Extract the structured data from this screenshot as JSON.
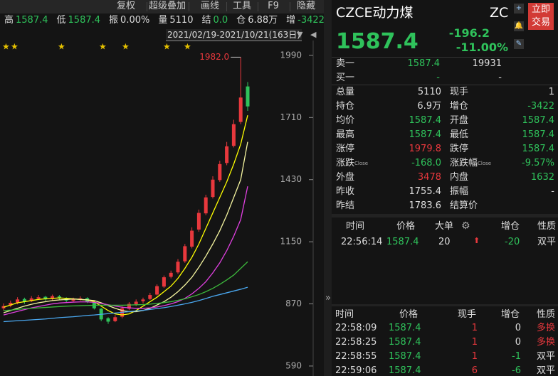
{
  "toolbar": [
    "复权",
    "超级叠加",
    "画线",
    "工具",
    "F9",
    "隐藏"
  ],
  "quote_bar": [
    {
      "label": "高",
      "value": "1587.4",
      "color": "#2fc25b"
    },
    {
      "label": "低",
      "value": "1587.4",
      "color": "#2fc25b"
    },
    {
      "label": "振",
      "value": "0.00%",
      "color": "#dddddd"
    },
    {
      "label": "量",
      "value": "5110",
      "color": "#dddddd"
    },
    {
      "label": "结",
      "value": "0.0",
      "color": "#2fc25b"
    },
    {
      "label": "仓",
      "value": "6.88万",
      "color": "#dddddd"
    },
    {
      "label": "增",
      "value": "-3422",
      "color": "#2fc25b"
    }
  ],
  "date_range": "2021/02/19-2021/10/21(163日)",
  "chart_data": {
    "type": "candlestick",
    "open": [
      850,
      862,
      874,
      892,
      882,
      893,
      902,
      892,
      904,
      896,
      884,
      888,
      896,
      878,
      848,
      805,
      792,
      812,
      848,
      868,
      882,
      892,
      912,
      948,
      992,
      1012,
      1062,
      1128,
      1205,
      1278,
      1352,
      1428,
      1505,
      1582,
      1690,
      1850
    ],
    "close": [
      860,
      875,
      890,
      880,
      895,
      900,
      890,
      905,
      895,
      885,
      890,
      895,
      880,
      850,
      800,
      790,
      810,
      850,
      870,
      880,
      890,
      910,
      950,
      990,
      1010,
      1060,
      1130,
      1200,
      1280,
      1350,
      1430,
      1500,
      1580,
      1680,
      1800,
      1760
    ],
    "high": [
      872,
      885,
      900,
      898,
      905,
      910,
      906,
      912,
      910,
      900,
      898,
      904,
      900,
      882,
      852,
      810,
      820,
      860,
      878,
      890,
      898,
      920,
      958,
      998,
      1020,
      1072,
      1140,
      1215,
      1295,
      1362,
      1445,
      1515,
      1600,
      1700,
      1982,
      1870
    ],
    "low": [
      840,
      855,
      868,
      870,
      878,
      888,
      884,
      885,
      888,
      878,
      880,
      884,
      874,
      845,
      792,
      780,
      788,
      805,
      842,
      860,
      872,
      888,
      908,
      942,
      985,
      1005,
      1055,
      1120,
      1195,
      1270,
      1345,
      1420,
      1495,
      1575,
      1680,
      1740
    ],
    "up_color": "#e8383d",
    "down_color": "#2fc25b",
    "max_label": "1982.0",
    "ylim": [
      545,
      2057
    ],
    "yticks": [
      1990,
      1710,
      1430,
      1150,
      870,
      590
    ],
    "series": [
      {
        "color": "#ffff00",
        "values": [
          855,
          865,
          875,
          880,
          885,
          890,
          893,
          895,
          897,
          895,
          893,
          890,
          888,
          880,
          860,
          840,
          825,
          820,
          825,
          840,
          860,
          880,
          900,
          925,
          950,
          985,
          1030,
          1080,
          1140,
          1210,
          1280,
          1350,
          1420,
          1500,
          1590,
          1720
        ]
      },
      {
        "color": "#f5f5a0",
        "values": [
          830,
          840,
          850,
          860,
          868,
          875,
          880,
          885,
          888,
          890,
          892,
          890,
          888,
          885,
          875,
          862,
          850,
          840,
          835,
          835,
          840,
          850,
          865,
          880,
          900,
          925,
          955,
          990,
          1035,
          1085,
          1140,
          1200,
          1270,
          1350,
          1430,
          1600
        ]
      },
      {
        "color": "#e040e0",
        "values": [
          820,
          828,
          836,
          844,
          852,
          858,
          864,
          870,
          874,
          876,
          878,
          879,
          879,
          877,
          872,
          866,
          860,
          855,
          852,
          850,
          850,
          852,
          856,
          862,
          870,
          880,
          895,
          915,
          940,
          970,
          1010,
          1055,
          1110,
          1175,
          1250,
          1400
        ]
      },
      {
        "color": "#3cb83c",
        "values": [
          840,
          842,
          845,
          848,
          850,
          852,
          854,
          856,
          858,
          860,
          861,
          862,
          863,
          864,
          864,
          864,
          864,
          864,
          865,
          866,
          867,
          869,
          872,
          876,
          880,
          886,
          893,
          902,
          912,
          925,
          940,
          958,
          978,
          1000,
          1030,
          1060
        ]
      },
      {
        "color": "#4aa8f0",
        "values": [
          790,
          792,
          794,
          796,
          798,
          800,
          802,
          805,
          808,
          810,
          812,
          815,
          818,
          820,
          823,
          826,
          829,
          832,
          835,
          838,
          841,
          845,
          849,
          853,
          858,
          864,
          870,
          877,
          885,
          894,
          904,
          912,
          920,
          928,
          936,
          945
        ]
      }
    ]
  },
  "header": {
    "name": "CZCE动力煤",
    "code": "ZC",
    "trade_button": "立即交易",
    "price": "1587.4",
    "change": "-196.2",
    "change_pct": "-11.00%"
  },
  "order_book": [
    {
      "label": "卖一",
      "price": "1587.4",
      "volume": "19931"
    },
    {
      "label": "买一",
      "price": "-",
      "volume": "-"
    }
  ],
  "stats": [
    [
      {
        "label": "总量",
        "value": "5110",
        "color": "#dddddd"
      },
      {
        "label": "现手",
        "value": "1",
        "color": "#dddddd"
      }
    ],
    [
      {
        "label": "持仓",
        "value": "6.9万",
        "color": "#dddddd"
      },
      {
        "label": "增仓",
        "value": "-3422",
        "color": "#2fc25b"
      }
    ],
    [
      {
        "label": "均价",
        "value": "1587.4",
        "color": "#2fc25b"
      },
      {
        "label": "开盘",
        "value": "1587.4",
        "color": "#2fc25b"
      }
    ],
    [
      {
        "label": "最高",
        "value": "1587.4",
        "color": "#2fc25b"
      },
      {
        "label": "最低",
        "value": "1587.4",
        "color": "#2fc25b"
      }
    ],
    [
      {
        "label": "涨停",
        "value": "1979.8",
        "color": "#e8383d"
      },
      {
        "label": "跌停",
        "value": "1587.4",
        "color": "#2fc25b"
      }
    ],
    [
      {
        "label": "涨跌",
        "tag": "Close",
        "value": "-168.0",
        "color": "#2fc25b"
      },
      {
        "label": "涨跌幅",
        "tag": "Close",
        "value": "-9.57%",
        "color": "#2fc25b"
      }
    ],
    [
      {
        "label": "外盘",
        "value": "3478",
        "color": "#e8383d"
      },
      {
        "label": "内盘",
        "value": "1632",
        "color": "#2fc25b"
      }
    ],
    [
      {
        "label": "昨收",
        "value": "1755.4",
        "color": "#dddddd"
      },
      {
        "label": "振幅",
        "value": "-",
        "color": "#dddddd"
      }
    ],
    [
      {
        "label": "昨结",
        "value": "1783.6",
        "color": "#dddddd"
      },
      {
        "label": "结算价"
      }
    ]
  ],
  "big_orders": {
    "header": [
      "时间",
      "价格",
      "大单",
      "增仓",
      "性质"
    ],
    "rows": [
      [
        {
          "text": "22:56:14",
          "color": "#dddddd"
        },
        {
          "text": "1587.4",
          "color": "#2fc25b"
        },
        {
          "text": "20",
          "color": "#dddddd"
        },
        {
          "text": "-20",
          "color": "#2fc25b"
        },
        {
          "text": "双平",
          "color": "#dddddd"
        }
      ]
    ]
  },
  "ticks": {
    "header": [
      "时间",
      "价格",
      "现手",
      "增仓",
      "性质"
    ],
    "rows": [
      [
        {
          "text": "22:58:09",
          "color": "#dddddd"
        },
        {
          "text": "1587.4",
          "color": "#2fc25b"
        },
        {
          "text": "1",
          "color": "#e8383d"
        },
        {
          "text": "0",
          "color": "#dddddd"
        },
        {
          "text": "多换",
          "color": "#e8383d"
        }
      ],
      [
        {
          "text": "22:58:25",
          "color": "#dddddd"
        },
        {
          "text": "1587.4",
          "color": "#2fc25b"
        },
        {
          "text": "1",
          "color": "#e8383d"
        },
        {
          "text": "0",
          "color": "#dddddd"
        },
        {
          "text": "多换",
          "color": "#e8383d"
        }
      ],
      [
        {
          "text": "22:58:55",
          "color": "#dddddd"
        },
        {
          "text": "1587.4",
          "color": "#2fc25b"
        },
        {
          "text": "1",
          "color": "#e8383d"
        },
        {
          "text": "-1",
          "color": "#2fc25b"
        },
        {
          "text": "双平",
          "color": "#dddddd"
        }
      ],
      [
        {
          "text": "22:59:06",
          "color": "#dddddd"
        },
        {
          "text": "1587.4",
          "color": "#2fc25b"
        },
        {
          "text": "6",
          "color": "#e8383d"
        },
        {
          "text": "-6",
          "color": "#2fc25b"
        },
        {
          "text": "双平",
          "color": "#dddddd"
        }
      ]
    ]
  }
}
